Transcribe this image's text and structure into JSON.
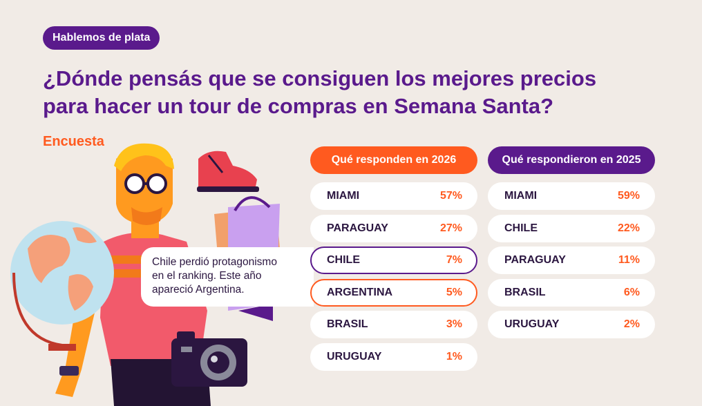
{
  "tag": "Hablemos de plata",
  "title_line1": "¿Dónde pensás que se consiguen los mejores precios",
  "title_line2": "para hacer un tour de compras en Semana Santa?",
  "kicker": "Encuesta",
  "colors": {
    "purple": "#5a1a8c",
    "orange": "#ff5a1f",
    "background": "#f1ebe6"
  },
  "survey_2026": {
    "heading": "Qué responden en 2026",
    "rows": [
      {
        "place": "MIAMI",
        "pct": "57%"
      },
      {
        "place": "PARAGUAY",
        "pct": "27%"
      },
      {
        "place": "CHILE",
        "pct": "7%"
      },
      {
        "place": "ARGENTINA",
        "pct": "5%"
      },
      {
        "place": "BRASIL",
        "pct": "3%"
      },
      {
        "place": "URUGUAY",
        "pct": "1%"
      }
    ]
  },
  "survey_2025": {
    "heading": "Qué respondieron en 2025",
    "rows": [
      {
        "place": "MIAMI",
        "pct": "59%"
      },
      {
        "place": "CHILE",
        "pct": "22%"
      },
      {
        "place": "PARAGUAY",
        "pct": "11%"
      },
      {
        "place": "BRASIL",
        "pct": "6%"
      },
      {
        "place": "URUGUAY",
        "pct": "2%"
      }
    ]
  },
  "callout": {
    "line1": "Chile perdió protagonismo",
    "line2": "en el ranking. Este año",
    "line3": "apareció Argentina."
  },
  "illustration_icons": [
    "globe-icon",
    "shoe-icon",
    "shopping-bag-icon",
    "camera-icon",
    "sunglasses-icon"
  ]
}
